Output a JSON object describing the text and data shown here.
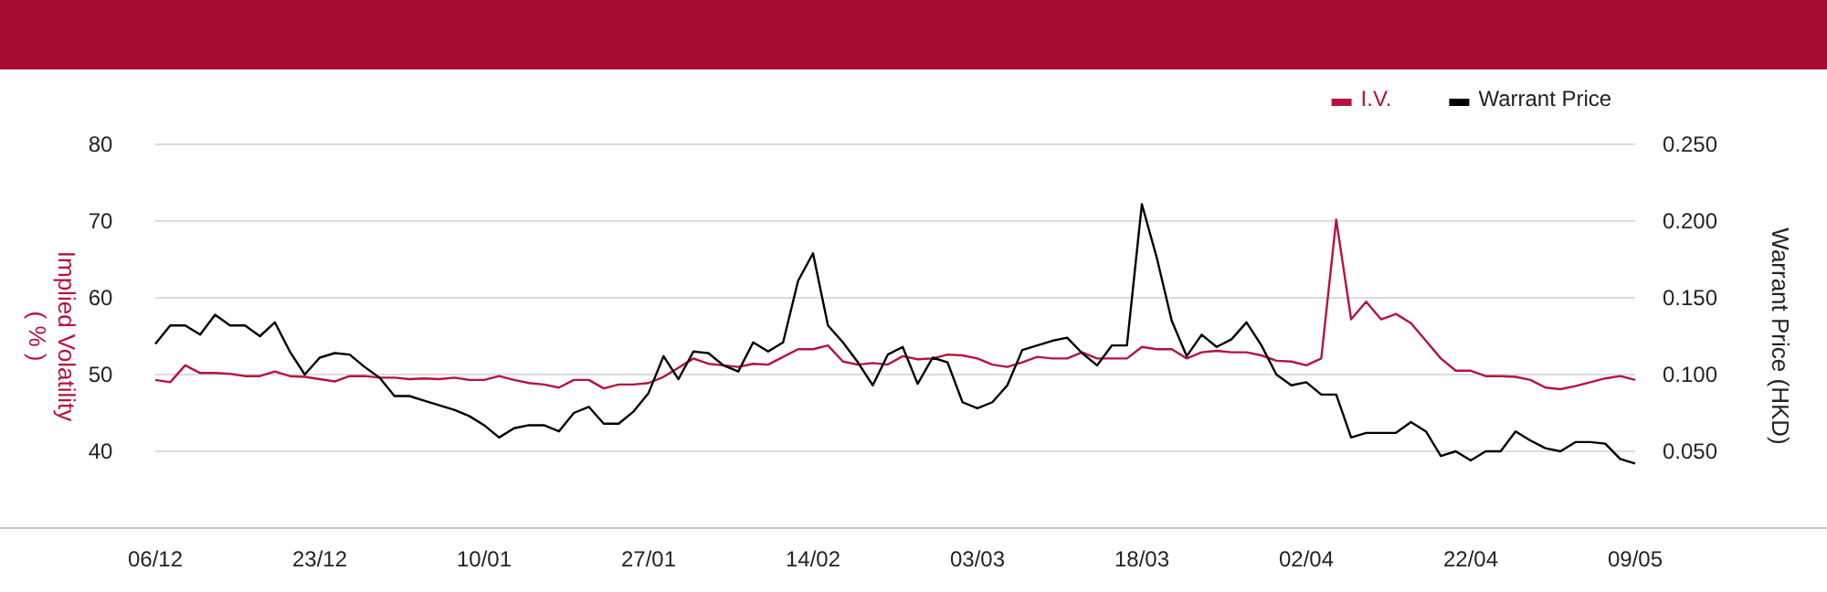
{
  "chart_data": {
    "type": "line",
    "ylabel": "Implied Volatility\n( % )",
    "y2label": "Warrant Price (HKD)",
    "categories": [
      "06/12",
      null,
      null,
      null,
      null,
      null,
      null,
      null,
      null,
      null,
      null,
      "23/12",
      null,
      null,
      null,
      null,
      null,
      null,
      null,
      null,
      null,
      null,
      "10/01",
      null,
      null,
      null,
      null,
      null,
      null,
      null,
      null,
      null,
      null,
      "27/01",
      null,
      null,
      null,
      null,
      null,
      null,
      null,
      null,
      null,
      null,
      "14/02",
      null,
      null,
      null,
      null,
      null,
      null,
      null,
      null,
      null,
      null,
      "03/03",
      null,
      null,
      null,
      null,
      null,
      null,
      null,
      null,
      null,
      null,
      "18/03",
      null,
      null,
      null,
      null,
      null,
      null,
      null,
      null,
      null,
      null,
      "02/04",
      null,
      null,
      null,
      null,
      null,
      null,
      null,
      null,
      null,
      null,
      "22/04",
      null,
      null,
      null,
      null,
      null,
      null,
      null,
      null,
      null,
      null,
      "09/05"
    ],
    "series": [
      {
        "name": "I.V.",
        "color": "#b5133f",
        "values": [
          49.3,
          49.0,
          51.2,
          50.2,
          50.2,
          50.1,
          49.8,
          49.8,
          50.4,
          49.8,
          49.7,
          49.4,
          49.1,
          49.8,
          49.8,
          49.6,
          49.6,
          49.4,
          49.5,
          49.4,
          49.6,
          49.3,
          49.3,
          49.8,
          49.3,
          48.9,
          48.7,
          48.3,
          49.3,
          49.3,
          48.2,
          48.7,
          48.7,
          48.9,
          49.7,
          50.9,
          52.1,
          51.4,
          51.2,
          51.0,
          51.4,
          51.3,
          52.3,
          53.3,
          53.3,
          53.8,
          51.7,
          51.3,
          51.5,
          51.3,
          52.4,
          52.0,
          52.1,
          52.6,
          52.5,
          52.1,
          51.3,
          51.0,
          51.6,
          52.3,
          52.1,
          52.1,
          52.9,
          52.1,
          52.1,
          52.1,
          53.6,
          53.3,
          53.3,
          52.1,
          52.9,
          53.1,
          52.9,
          52.9,
          52.5,
          51.8,
          51.7,
          51.2,
          52.1,
          70.2,
          57.2,
          59.5,
          57.2,
          57.9,
          56.7,
          54.4,
          52.1,
          50.5,
          50.5,
          49.8,
          49.8,
          49.7,
          49.3,
          48.3,
          48.1,
          48.5,
          49.0,
          49.5,
          49.8,
          49.3
        ]
      },
      {
        "name": "Warrant Price",
        "color": "#000000",
        "axis": "y2",
        "values": [
          0.12,
          0.132,
          0.132,
          0.126,
          0.139,
          0.132,
          0.132,
          0.125,
          0.134,
          0.115,
          0.1,
          0.111,
          0.114,
          0.113,
          0.105,
          0.098,
          0.086,
          0.086,
          0.083,
          0.08,
          0.077,
          0.073,
          0.067,
          0.059,
          0.065,
          0.067,
          0.067,
          0.063,
          0.075,
          0.079,
          0.068,
          0.068,
          0.076,
          0.088,
          0.112,
          0.097,
          0.115,
          0.114,
          0.106,
          0.102,
          0.121,
          0.115,
          0.121,
          0.161,
          0.179,
          0.132,
          0.121,
          0.108,
          0.093,
          0.113,
          0.118,
          0.094,
          0.111,
          0.108,
          0.082,
          0.078,
          0.082,
          0.093,
          0.116,
          0.119,
          0.122,
          0.124,
          0.114,
          0.106,
          0.119,
          0.119,
          0.211,
          0.176,
          0.135,
          0.112,
          0.126,
          0.118,
          0.123,
          0.134,
          0.119,
          0.1,
          0.093,
          0.095,
          0.087,
          0.087,
          0.059,
          0.062,
          0.062,
          0.062,
          0.069,
          0.063,
          0.047,
          0.05,
          0.044,
          0.05,
          0.05,
          0.063,
          0.057,
          0.052,
          0.05,
          0.056,
          0.056,
          0.055,
          0.045,
          0.042
        ]
      }
    ],
    "ylim": [
      30,
      80
    ],
    "yticks": [
      40,
      50,
      60,
      70,
      80
    ],
    "y2lim": [
      0,
      0.25
    ],
    "y2ticks": [
      {
        "value": 0.05,
        "label": "0.050"
      },
      {
        "value": 0.1,
        "label": "0.100"
      },
      {
        "value": 0.15,
        "label": "0.150"
      },
      {
        "value": 0.2,
        "label": "0.200"
      },
      {
        "value": 0.25,
        "label": "0.250"
      }
    ],
    "grid": "y",
    "legend": "top right",
    "marker": "none",
    "line_style": "solid"
  }
}
